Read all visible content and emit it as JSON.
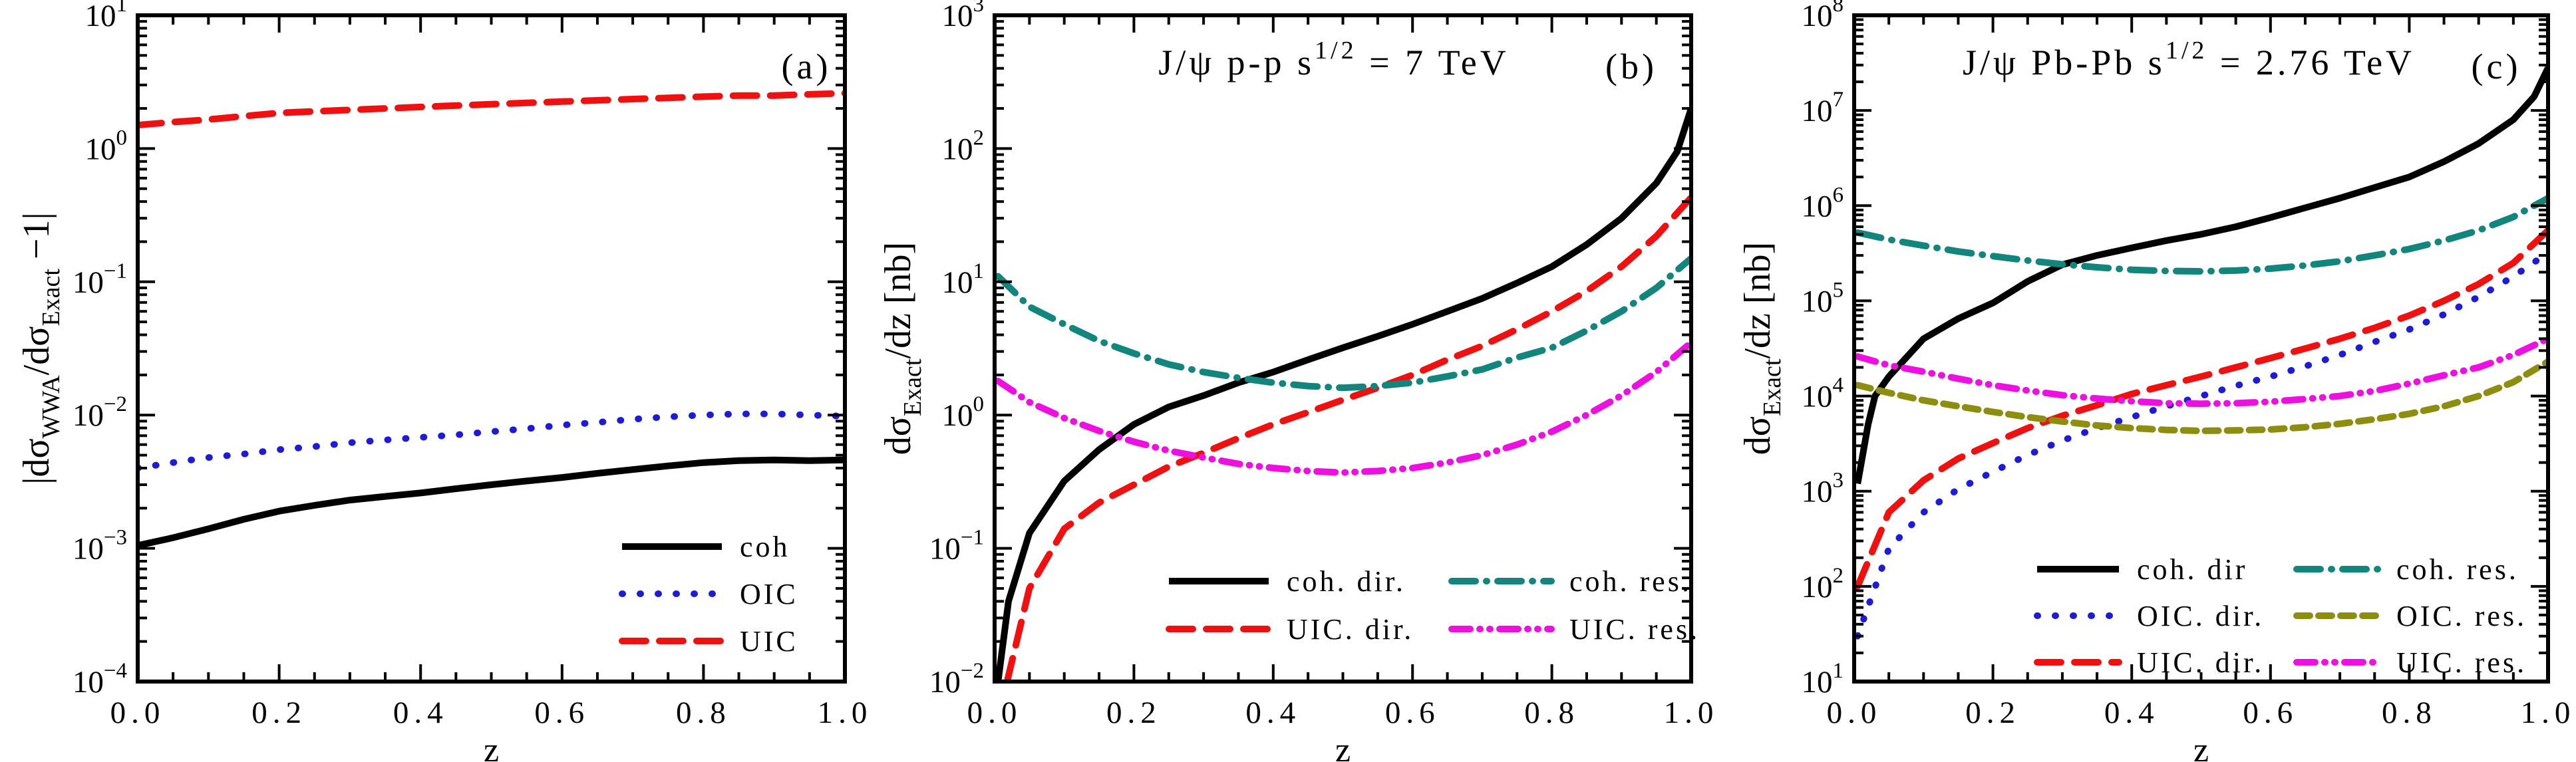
{
  "figure": {
    "background": "#ffffff",
    "xlabel": "z",
    "x_tick_labels": [
      "0.0",
      "0.2",
      "0.4",
      "0.6",
      "0.8",
      "1.0"
    ]
  },
  "colors": {
    "black": "#000000",
    "red": "#f01010",
    "blue": "#1c1cd8",
    "teal": "#12857c",
    "magenta": "#ee10e0",
    "olive": "#8d8d10"
  },
  "chart_data": [
    {
      "type": "line",
      "panel_label": "(a)",
      "title_parts": [],
      "xlabel": "z",
      "ylabel_parts": [
        {
          "t": "|dσ"
        },
        {
          "t": "WWA",
          "sub": true
        },
        {
          "t": "/dσ"
        },
        {
          "t": "Exact",
          "sub": true
        },
        {
          "t": " −1|"
        }
      ],
      "xlim": [
        0,
        1
      ],
      "xticks": [
        0,
        0.2,
        0.4,
        0.6,
        0.8,
        1.0
      ],
      "x_minor_step": 0.05,
      "ylog_top_exp": 1,
      "ylog_bot_exp": -4,
      "legend_position": "lower right",
      "grid": false,
      "series": [
        {
          "name": "coh",
          "color": "black",
          "dash": "solid",
          "x": [
            0,
            0.05,
            0.1,
            0.15,
            0.2,
            0.25,
            0.3,
            0.35,
            0.4,
            0.45,
            0.5,
            0.55,
            0.6,
            0.65,
            0.7,
            0.75,
            0.8,
            0.85,
            0.9,
            0.95,
            1.0
          ],
          "y": [
            0.00105,
            0.0012,
            0.0014,
            0.00165,
            0.0019,
            0.0021,
            0.0023,
            0.00245,
            0.0026,
            0.0028,
            0.003,
            0.0032,
            0.0034,
            0.00365,
            0.0039,
            0.00415,
            0.0044,
            0.00455,
            0.0046,
            0.00455,
            0.0046
          ]
        },
        {
          "name": "OIC",
          "color": "blue",
          "dash": "dot",
          "x": [
            0,
            0.05,
            0.1,
            0.15,
            0.2,
            0.25,
            0.3,
            0.35,
            0.4,
            0.45,
            0.5,
            0.55,
            0.6,
            0.65,
            0.7,
            0.75,
            0.8,
            0.85,
            0.9,
            0.95,
            1.0
          ],
          "y": [
            0.004,
            0.0044,
            0.0048,
            0.0051,
            0.0055,
            0.0058,
            0.0062,
            0.0065,
            0.0068,
            0.0071,
            0.0075,
            0.0079,
            0.0084,
            0.0088,
            0.0093,
            0.0097,
            0.01,
            0.0102,
            0.0102,
            0.01,
            0.0098
          ]
        },
        {
          "name": "UIC",
          "color": "red",
          "dash": "dash",
          "x": [
            0,
            0.05,
            0.1,
            0.15,
            0.2,
            0.25,
            0.3,
            0.35,
            0.4,
            0.45,
            0.5,
            0.55,
            0.6,
            0.65,
            0.7,
            0.75,
            0.8,
            0.85,
            0.9,
            0.95,
            1.0
          ],
          "y": [
            1.5,
            1.58,
            1.65,
            1.75,
            1.85,
            1.9,
            1.95,
            2.0,
            2.05,
            2.1,
            2.15,
            2.2,
            2.25,
            2.3,
            2.35,
            2.4,
            2.45,
            2.5,
            2.5,
            2.55,
            2.6
          ]
        }
      ]
    },
    {
      "type": "line",
      "panel_label": "(b)",
      "title_parts": [
        {
          "t": "J/ψ p-p s"
        },
        {
          "t": "1/2",
          "sup": true
        },
        {
          "t": " = 7 TeV"
        }
      ],
      "xlabel": "z",
      "ylabel_parts": [
        {
          "t": "dσ"
        },
        {
          "t": "Exact",
          "sub": true
        },
        {
          "t": "/dz [nb]"
        }
      ],
      "xlim": [
        0,
        1
      ],
      "xticks": [
        0,
        0.2,
        0.4,
        0.6,
        0.8,
        1.0
      ],
      "x_minor_step": 0.05,
      "ylog_top_exp": 3,
      "ylog_bot_exp": -2,
      "legend_position": "lower center two-column",
      "grid": false,
      "series": [
        {
          "name": "coh. dir.",
          "color": "black",
          "dash": "solid",
          "x": [
            0.005,
            0.02,
            0.05,
            0.1,
            0.15,
            0.2,
            0.25,
            0.3,
            0.35,
            0.4,
            0.45,
            0.5,
            0.55,
            0.6,
            0.65,
            0.7,
            0.75,
            0.8,
            0.85,
            0.9,
            0.95,
            0.98,
            1.0
          ],
          "y": [
            0.01,
            0.04,
            0.13,
            0.32,
            0.55,
            0.85,
            1.15,
            1.4,
            1.75,
            2.1,
            2.6,
            3.2,
            3.9,
            4.8,
            6.0,
            7.5,
            9.8,
            13,
            19,
            30,
            55,
            95,
            200
          ]
        },
        {
          "name": "UIC. dir.",
          "color": "red",
          "dash": "dash",
          "x": [
            0.018,
            0.05,
            0.1,
            0.15,
            0.2,
            0.25,
            0.3,
            0.35,
            0.4,
            0.45,
            0.5,
            0.55,
            0.6,
            0.65,
            0.7,
            0.75,
            0.8,
            0.85,
            0.9,
            0.95,
            1.0
          ],
          "y": [
            0.01,
            0.05,
            0.14,
            0.22,
            0.3,
            0.41,
            0.52,
            0.67,
            0.85,
            1.05,
            1.3,
            1.6,
            2.0,
            2.6,
            3.3,
            4.4,
            6.0,
            8.5,
            13,
            22,
            43
          ]
        },
        {
          "name": "coh. res.",
          "color": "teal",
          "dash": "dashdot",
          "x": [
            0.005,
            0.05,
            0.1,
            0.15,
            0.2,
            0.25,
            0.3,
            0.35,
            0.4,
            0.45,
            0.5,
            0.55,
            0.6,
            0.65,
            0.7,
            0.75,
            0.8,
            0.85,
            0.9,
            0.95,
            1.0
          ],
          "y": [
            11,
            6.5,
            4.8,
            3.6,
            2.9,
            2.4,
            2.1,
            1.9,
            1.75,
            1.65,
            1.6,
            1.65,
            1.75,
            1.95,
            2.2,
            2.7,
            3.2,
            4.3,
            6.0,
            9.0,
            15
          ]
        },
        {
          "name": "UIC. res.",
          "color": "magenta",
          "dash": "dashdotdot",
          "x": [
            0.005,
            0.05,
            0.1,
            0.15,
            0.2,
            0.25,
            0.3,
            0.35,
            0.4,
            0.45,
            0.5,
            0.55,
            0.6,
            0.65,
            0.7,
            0.75,
            0.8,
            0.85,
            0.9,
            0.95,
            1.0
          ],
          "y": [
            1.8,
            1.25,
            0.95,
            0.76,
            0.63,
            0.54,
            0.48,
            0.43,
            0.4,
            0.38,
            0.37,
            0.38,
            0.4,
            0.44,
            0.5,
            0.6,
            0.75,
            1.0,
            1.4,
            2.1,
            3.5
          ]
        }
      ]
    },
    {
      "type": "line",
      "panel_label": "(c)",
      "title_parts": [
        {
          "t": "J/ψ Pb-Pb s"
        },
        {
          "t": "1/2",
          "sup": true
        },
        {
          "t": " = 2.76 TeV"
        }
      ],
      "xlabel": "z",
      "ylabel_parts": [
        {
          "t": "dσ"
        },
        {
          "t": "Exact",
          "sub": true
        },
        {
          "t": "/dz [nb]"
        }
      ],
      "xlim": [
        0,
        1
      ],
      "xticks": [
        0,
        0.2,
        0.4,
        0.6,
        0.8,
        1.0
      ],
      "x_minor_step": 0.05,
      "ylog_top_exp": 8,
      "ylog_bot_exp": 1,
      "legend_position": "lower center two-column",
      "grid": false,
      "series": [
        {
          "name": "coh. dir",
          "color": "black",
          "dash": "solid",
          "x": [
            0.005,
            0.02,
            0.03,
            0.05,
            0.1,
            0.15,
            0.2,
            0.25,
            0.3,
            0.35,
            0.4,
            0.45,
            0.5,
            0.55,
            0.6,
            0.65,
            0.7,
            0.75,
            0.8,
            0.85,
            0.9,
            0.95,
            0.98,
            1.0
          ],
          "y": [
            1200,
            5000,
            10000,
            16000,
            40000,
            65000,
            95000,
            160000,
            240000,
            300000,
            360000,
            430000,
            500000,
            600000,
            750000,
            950000,
            1200000,
            1550000,
            2000000,
            2900000,
            4500000,
            8000000,
            14000000,
            28000000
          ]
        },
        {
          "name": "OIC. dir.",
          "color": "blue",
          "dash": "dot",
          "x": [
            0.005,
            0.05,
            0.1,
            0.15,
            0.2,
            0.25,
            0.3,
            0.35,
            0.4,
            0.45,
            0.5,
            0.55,
            0.6,
            0.65,
            0.7,
            0.75,
            0.8,
            0.85,
            0.9,
            0.95,
            1.0
          ],
          "y": [
            30,
            250,
            600,
            1050,
            1600,
            2400,
            3400,
            4600,
            6000,
            7800,
            10000,
            12800,
            16000,
            20500,
            27000,
            37000,
            50000,
            72000,
            110000,
            180000,
            320000
          ]
        },
        {
          "name": "UIC. dir.",
          "color": "red",
          "dash": "dash",
          "x": [
            0.005,
            0.05,
            0.1,
            0.15,
            0.2,
            0.25,
            0.3,
            0.35,
            0.4,
            0.45,
            0.5,
            0.55,
            0.6,
            0.65,
            0.7,
            0.75,
            0.8,
            0.85,
            0.9,
            0.95,
            1.0
          ],
          "y": [
            100,
            600,
            1300,
            2200,
            3200,
            4600,
            6200,
            8000,
            10500,
            13000,
            16000,
            20000,
            25000,
            31500,
            40000,
            52000,
            70000,
            100000,
            150000,
            250000,
            550000
          ]
        },
        {
          "name": "coh. res.",
          "color": "teal",
          "dash": "dashdot",
          "x": [
            0.005,
            0.05,
            0.1,
            0.15,
            0.2,
            0.25,
            0.3,
            0.35,
            0.4,
            0.45,
            0.5,
            0.55,
            0.6,
            0.65,
            0.7,
            0.75,
            0.8,
            0.85,
            0.9,
            0.95,
            1.0
          ],
          "y": [
            520000,
            440000,
            380000,
            330000,
            295000,
            265000,
            242000,
            225000,
            212000,
            206000,
            204000,
            208000,
            218000,
            235000,
            260000,
            300000,
            350000,
            430000,
            550000,
            760000,
            1200000
          ]
        },
        {
          "name": "OIC. res.",
          "color": "olive",
          "dash": "shortdash",
          "x": [
            0.005,
            0.05,
            0.1,
            0.15,
            0.2,
            0.25,
            0.3,
            0.35,
            0.4,
            0.45,
            0.5,
            0.55,
            0.6,
            0.65,
            0.7,
            0.75,
            0.8,
            0.85,
            0.9,
            0.95,
            1.0
          ],
          "y": [
            13000,
            10800,
            9000,
            7800,
            6800,
            6000,
            5400,
            4900,
            4600,
            4400,
            4300,
            4350,
            4450,
            4700,
            5100,
            5700,
            6500,
            7800,
            10000,
            14000,
            23000
          ]
        },
        {
          "name": "UIC. res.",
          "color": "magenta",
          "dash": "dashdotdot",
          "x": [
            0.005,
            0.05,
            0.1,
            0.15,
            0.2,
            0.25,
            0.3,
            0.35,
            0.4,
            0.45,
            0.5,
            0.55,
            0.6,
            0.65,
            0.7,
            0.75,
            0.8,
            0.85,
            0.9,
            0.95,
            1.0
          ],
          "y": [
            26000,
            21000,
            18000,
            15200,
            13000,
            11400,
            10200,
            9400,
            8800,
            8400,
            8300,
            8400,
            8700,
            9300,
            10000,
            11300,
            13500,
            16500,
            20000,
            27000,
            40000
          ]
        }
      ]
    }
  ]
}
